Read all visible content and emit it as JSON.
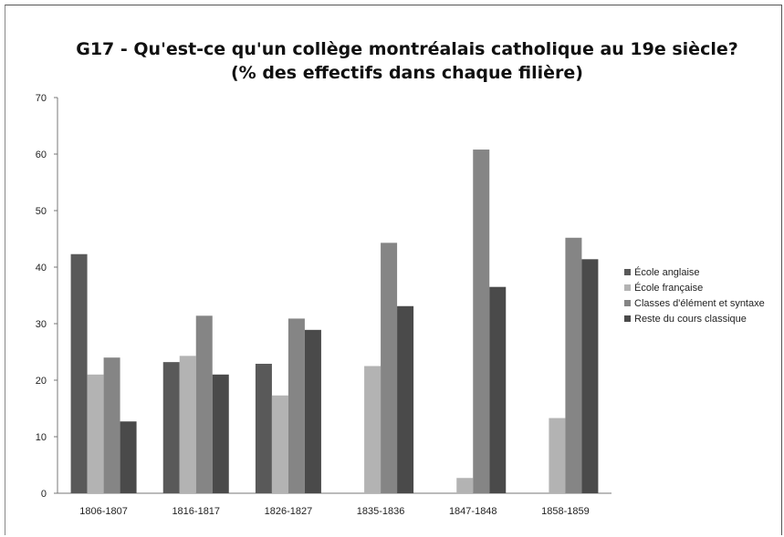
{
  "chart_data": {
    "type": "bar",
    "title": "G17 - Qu'est-ce qu'un collège montréalais catholique au 19e siècle?",
    "subtitle": "(% des effectifs dans chaque filière)",
    "xlabel": "",
    "ylabel": "",
    "ylim": [
      0,
      70
    ],
    "yticks": [
      "0",
      "10",
      "20",
      "30",
      "40",
      "50",
      "60",
      "70"
    ],
    "categories": [
      "1806-1807",
      "1816-1817",
      "1826-1827",
      "1835-1836",
      "1847-1848",
      "1858-1859"
    ],
    "legend_position": "right",
    "grid": false,
    "series": [
      {
        "name": "École anglaise",
        "color": "#595959",
        "values": [
          42.3,
          23.2,
          22.9,
          0,
          0,
          0
        ]
      },
      {
        "name": "École française",
        "color": "#b3b3b3",
        "values": [
          21.0,
          24.3,
          17.3,
          22.5,
          2.7,
          13.3
        ]
      },
      {
        "name": "Classes d'élément et syntaxe",
        "color": "#858585",
        "values": [
          24.0,
          31.4,
          30.9,
          44.3,
          60.8,
          45.2
        ]
      },
      {
        "name": "Reste du cours classique",
        "color": "#4a4a4a",
        "values": [
          12.7,
          21.0,
          28.9,
          33.1,
          36.5,
          41.4
        ]
      }
    ]
  }
}
